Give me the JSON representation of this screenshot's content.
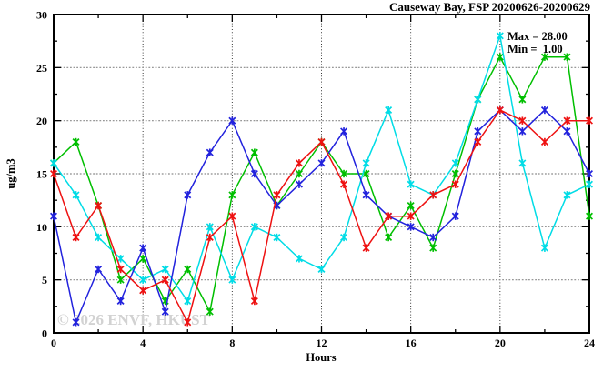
{
  "header": {
    "title": "Causeway Bay, FSP 20200626-20200629"
  },
  "annotations": {
    "max_label": "Max = 28.00",
    "min_label": "Min =  1.00"
  },
  "watermark": "© 2026 ENVF, HKUST",
  "axes": {
    "xlabel": "Hours",
    "ylabel": "ug/m3"
  },
  "chart_data": {
    "type": "line",
    "title": "Causeway Bay, FSP 20200626-20200629",
    "xlabel": "Hours",
    "ylabel": "ug/m3",
    "xlim": [
      0,
      24
    ],
    "ylim": [
      0,
      30
    ],
    "xticks_major": [
      0,
      4,
      8,
      12,
      16,
      20,
      24
    ],
    "xtick_minor_step": 2,
    "yticks_major": [
      0,
      5,
      10,
      15,
      20,
      25,
      30
    ],
    "ytick_minor_step": 2.5,
    "grid": "dotted-at-major-ticks",
    "legend": "none",
    "marker": "asterisk-cross",
    "x": [
      0,
      1,
      2,
      3,
      4,
      5,
      6,
      7,
      8,
      9,
      10,
      11,
      12,
      13,
      14,
      15,
      16,
      17,
      18,
      19,
      20,
      21,
      22,
      23,
      24
    ],
    "series": [
      {
        "name": "green",
        "color": "#00bf00",
        "values": [
          16,
          18,
          12,
          5,
          7,
          3,
          6,
          2,
          13,
          17,
          12,
          15,
          18,
          15,
          15,
          9,
          12,
          8,
          15,
          22,
          26,
          22,
          26,
          26,
          11
        ]
      },
      {
        "name": "cyan",
        "color": "#00dce6",
        "values": [
          16,
          13,
          9,
          7,
          5,
          6,
          3,
          10,
          5,
          10,
          9,
          7,
          6,
          9,
          16,
          21,
          14,
          13,
          16,
          22,
          28,
          16,
          8,
          13,
          14
        ]
      },
      {
        "name": "blue",
        "color": "#2222dd",
        "values": [
          11,
          1,
          6,
          3,
          8,
          2,
          13,
          17,
          20,
          15,
          12,
          14,
          16,
          19,
          13,
          11,
          10,
          9,
          11,
          19,
          21,
          19,
          21,
          19,
          15
        ]
      },
      {
        "name": "red",
        "color": "#ee1111",
        "values": [
          15,
          9,
          12,
          6,
          4,
          5,
          1,
          9,
          11,
          3,
          13,
          16,
          18,
          14,
          8,
          11,
          11,
          13,
          14,
          18,
          21,
          20,
          18,
          20,
          20
        ]
      }
    ],
    "stats": {
      "max": 28.0,
      "min": 1.0
    }
  }
}
